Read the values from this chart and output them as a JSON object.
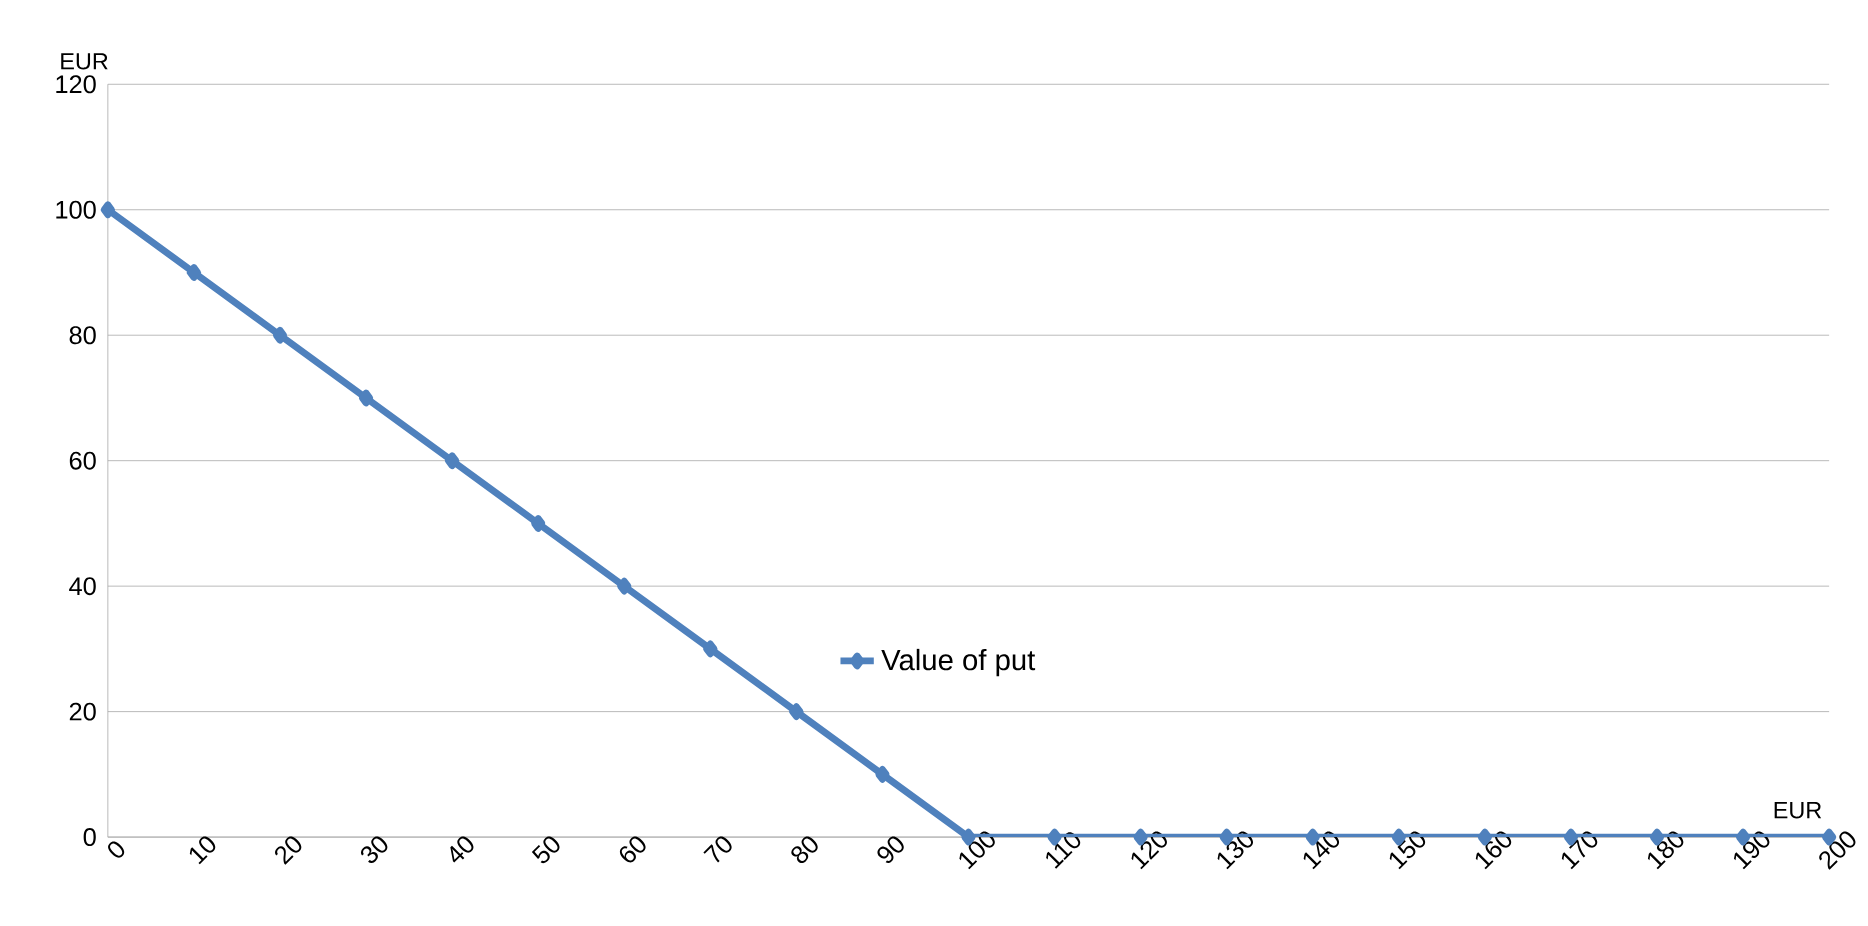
{
  "chart_data": {
    "type": "line",
    "xlabel": "EUR",
    "ylabel": "EUR",
    "x": [
      0,
      10,
      20,
      30,
      40,
      50,
      60,
      70,
      80,
      90,
      100,
      110,
      120,
      130,
      140,
      150,
      160,
      170,
      180,
      190,
      200
    ],
    "series": [
      {
        "name": "Value of put",
        "color": "#4f81bd",
        "values": [
          100,
          90,
          80,
          70,
          60,
          50,
          40,
          30,
          20,
          10,
          0,
          0,
          0,
          0,
          0,
          0,
          0,
          0,
          0,
          0,
          0
        ]
      }
    ],
    "xlim": [
      0,
      200
    ],
    "xticks": [
      0,
      10,
      20,
      30,
      40,
      50,
      60,
      70,
      80,
      90,
      100,
      110,
      120,
      130,
      140,
      150,
      160,
      170,
      180,
      190,
      200
    ],
    "ylim": [
      0,
      120
    ],
    "yticks": [
      0,
      20,
      40,
      60,
      80,
      100,
      120
    ],
    "grid": "y",
    "legend": "center",
    "marker": "diamond",
    "line_style": "solid"
  }
}
